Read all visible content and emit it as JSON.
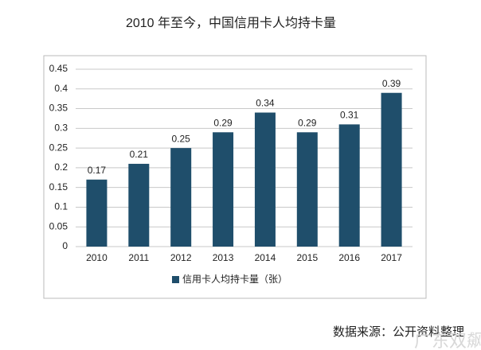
{
  "chart_data": {
    "type": "bar",
    "title": "2010 年至今，中国信用卡人均持卡量",
    "categories": [
      "2010",
      "2011",
      "2012",
      "2013",
      "2014",
      "2015",
      "2016",
      "2017"
    ],
    "series": [
      {
        "name": "信用卡人均持卡量（张）",
        "color": "#1f4e6b",
        "values": [
          0.17,
          0.21,
          0.25,
          0.29,
          0.34,
          0.29,
          0.31,
          0.39
        ]
      }
    ],
    "ylim": [
      0,
      0.45
    ],
    "yticks": [
      0,
      0.05,
      0.1,
      0.15,
      0.2,
      0.25,
      0.3,
      0.35,
      0.4,
      0.45
    ],
    "grid": true,
    "legend": "bottom",
    "source": "数据来源：公开资料整理",
    "watermark": "广东双飙"
  }
}
